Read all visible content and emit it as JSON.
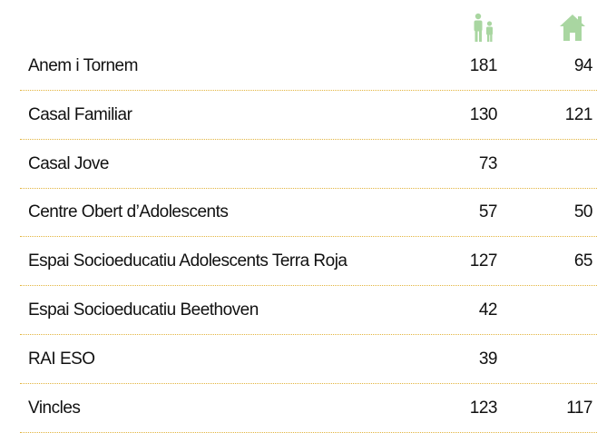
{
  "table": {
    "rows": [
      [
        "Anem i Tornem",
        "181",
        "94"
      ],
      [
        "Casal Familiar",
        "130",
        "121"
      ],
      [
        "Casal Jove",
        "73"
      ],
      [
        "Centre Obert d’Adolescents",
        "57",
        "50"
      ],
      [
        "Espai Socioeducatiu Adolescents Terra Roja",
        "127",
        "65"
      ],
      [
        "Espai Socioeducatiu Beethoven",
        "42"
      ],
      [
        "RAI ESO",
        "39"
      ],
      [
        "Vincles",
        "123",
        "117"
      ]
    ]
  }
}
